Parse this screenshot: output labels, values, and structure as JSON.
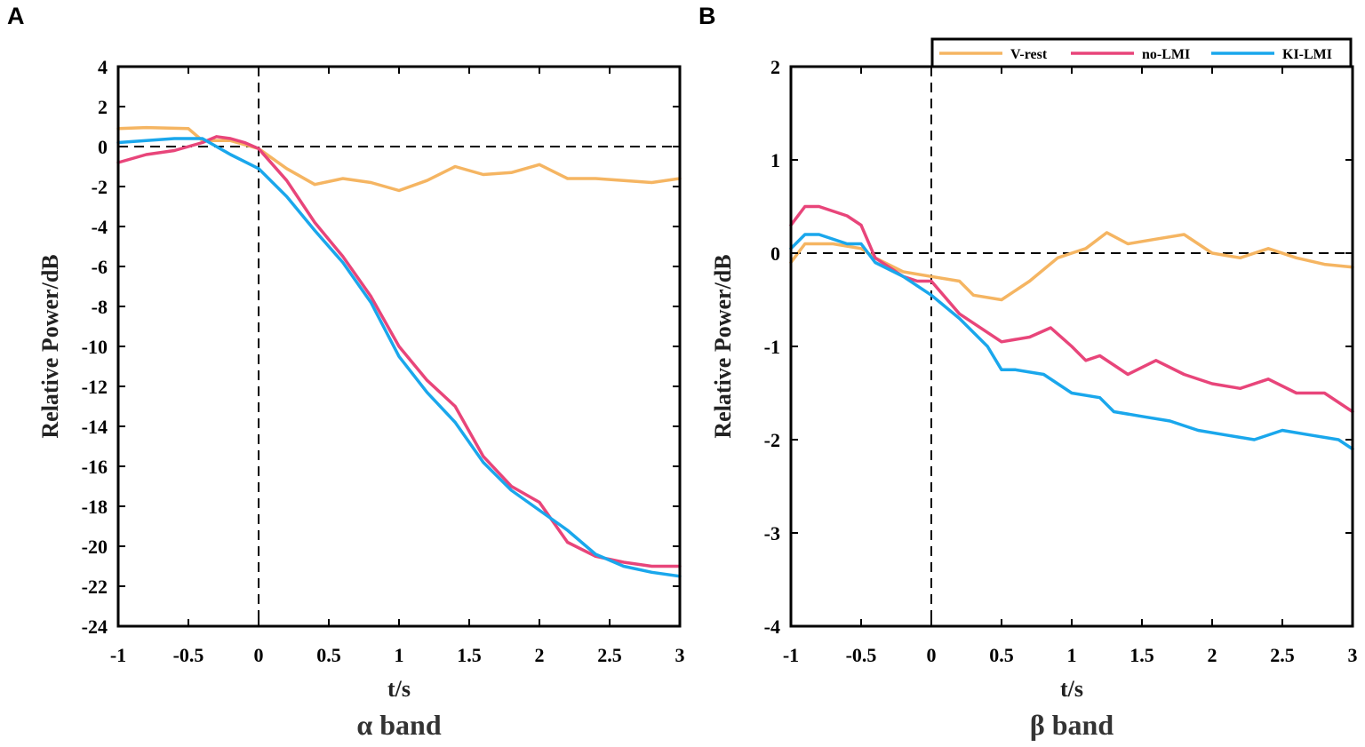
{
  "colors": {
    "V-rest": "#f5b562",
    "no-LMI": "#e8457a",
    "KI-LMI": "#1aa7ec"
  },
  "chart_data": [
    {
      "type": "line",
      "panel": "A",
      "subtitle": "α band",
      "xlabel": "t/s",
      "ylabel": "Relative Power/dB",
      "xlim": [
        -1,
        3
      ],
      "ylim": [
        -24,
        4
      ],
      "xticks": [
        -1,
        -0.5,
        0,
        0.5,
        1,
        1.5,
        2,
        2.5,
        3
      ],
      "xtick_labels": [
        "-1",
        "-0.5",
        "0",
        "0.5",
        "1",
        "1.5",
        "2",
        "2.5",
        "3"
      ],
      "yticks": [
        4,
        2,
        0,
        -2,
        -4,
        -6,
        -8,
        -10,
        -12,
        -14,
        -16,
        -18,
        -20,
        -22,
        -24
      ],
      "ytick_labels": [
        "4",
        "2",
        "0",
        "-2",
        "-4",
        "-6",
        "-8",
        "-10",
        "-12",
        "-14",
        "-16",
        "-18",
        "-20",
        "-22",
        "-24"
      ],
      "reference_lines": {
        "x": 0,
        "y": 0
      },
      "series": [
        {
          "name": "V-rest",
          "x": [
            -1,
            -0.8,
            -0.5,
            -0.4,
            -0.2,
            0,
            0.2,
            0.4,
            0.6,
            0.8,
            1,
            1.2,
            1.4,
            1.6,
            1.8,
            2,
            2.2,
            2.4,
            2.6,
            2.8,
            3
          ],
          "values": [
            0.9,
            0.95,
            0.9,
            0.3,
            0.3,
            -0.1,
            -1.1,
            -1.9,
            -1.6,
            -1.8,
            -2.2,
            -1.7,
            -1.0,
            -1.4,
            -1.3,
            -0.9,
            -1.6,
            -1.6,
            -1.7,
            -1.8,
            -1.6
          ]
        },
        {
          "name": "no-LMI",
          "x": [
            -1,
            -0.8,
            -0.6,
            -0.4,
            -0.3,
            -0.2,
            -0.1,
            0,
            0.2,
            0.4,
            0.6,
            0.8,
            1,
            1.2,
            1.4,
            1.6,
            1.8,
            2,
            2.2,
            2.4,
            2.6,
            2.8,
            3
          ],
          "values": [
            -0.8,
            -0.4,
            -0.2,
            0.2,
            0.5,
            0.4,
            0.2,
            -0.1,
            -1.7,
            -3.8,
            -5.5,
            -7.5,
            -10.0,
            -11.7,
            -13.0,
            -15.5,
            -17.0,
            -17.8,
            -19.8,
            -20.5,
            -20.8,
            -21.0,
            -21.0
          ]
        },
        {
          "name": "KI-LMI",
          "x": [
            -1,
            -0.8,
            -0.6,
            -0.4,
            -0.2,
            0,
            0.2,
            0.4,
            0.6,
            0.8,
            1,
            1.2,
            1.4,
            1.6,
            1.8,
            2,
            2.2,
            2.4,
            2.6,
            2.8,
            3
          ],
          "values": [
            0.2,
            0.3,
            0.4,
            0.4,
            -0.4,
            -1.1,
            -2.5,
            -4.2,
            -5.8,
            -7.8,
            -10.5,
            -12.3,
            -13.8,
            -15.8,
            -17.2,
            -18.2,
            -19.2,
            -20.4,
            -21.0,
            -21.3,
            -21.5
          ]
        }
      ]
    },
    {
      "type": "line",
      "panel": "B",
      "subtitle": "β band",
      "xlabel": "t/s",
      "ylabel": "Relative Power/dB",
      "xlim": [
        -1,
        3
      ],
      "ylim": [
        -4,
        2
      ],
      "xticks": [
        -1,
        -0.5,
        0,
        0.5,
        1,
        1.5,
        2,
        2.5,
        3
      ],
      "xtick_labels": [
        "-1",
        "-0.5",
        "0",
        "0.5",
        "1",
        "1.5",
        "2",
        "2.5",
        "3"
      ],
      "yticks": [
        2,
        1,
        0,
        -1,
        -2,
        -3,
        -4
      ],
      "ytick_labels": [
        "2",
        "1",
        "0",
        "-1",
        "-2",
        "-3",
        "-4"
      ],
      "reference_lines": {
        "x": 0,
        "y": 0
      },
      "legend": {
        "position": "top",
        "entries": [
          "V-rest",
          "no-LMI",
          "KI-LMI"
        ]
      },
      "series": [
        {
          "name": "V-rest",
          "x": [
            -1,
            -0.9,
            -0.7,
            -0.5,
            -0.4,
            -0.2,
            0,
            0.2,
            0.3,
            0.5,
            0.7,
            0.9,
            1,
            1.1,
            1.25,
            1.4,
            1.6,
            1.8,
            2,
            2.2,
            2.4,
            2.6,
            2.8,
            3
          ],
          "values": [
            -0.1,
            0.1,
            0.1,
            0.05,
            -0.05,
            -0.2,
            -0.25,
            -0.3,
            -0.45,
            -0.5,
            -0.3,
            -0.05,
            0.0,
            0.05,
            0.22,
            0.1,
            0.15,
            0.2,
            0.0,
            -0.05,
            0.05,
            -0.05,
            -0.12,
            -0.15
          ]
        },
        {
          "name": "no-LMI",
          "x": [
            -1,
            -0.9,
            -0.8,
            -0.6,
            -0.5,
            -0.4,
            -0.2,
            -0.1,
            0,
            0.2,
            0.4,
            0.5,
            0.7,
            0.85,
            1,
            1.1,
            1.2,
            1.4,
            1.6,
            1.8,
            2,
            2.2,
            2.4,
            2.6,
            2.8,
            3
          ],
          "values": [
            0.3,
            0.5,
            0.5,
            0.4,
            0.3,
            -0.05,
            -0.25,
            -0.3,
            -0.3,
            -0.65,
            -0.85,
            -0.95,
            -0.9,
            -0.8,
            -1.0,
            -1.15,
            -1.1,
            -1.3,
            -1.15,
            -1.3,
            -1.4,
            -1.45,
            -1.35,
            -1.5,
            -1.5,
            -1.7
          ]
        },
        {
          "name": "KI-LMI",
          "x": [
            -1,
            -0.9,
            -0.8,
            -0.6,
            -0.5,
            -0.4,
            -0.2,
            -0.1,
            0,
            0.2,
            0.4,
            0.5,
            0.6,
            0.8,
            1,
            1.2,
            1.3,
            1.5,
            1.7,
            1.9,
            2.1,
            2.3,
            2.5,
            2.7,
            2.9,
            3
          ],
          "values": [
            0.05,
            0.2,
            0.2,
            0.1,
            0.1,
            -0.1,
            -0.25,
            -0.35,
            -0.45,
            -0.7,
            -1.0,
            -1.25,
            -1.25,
            -1.3,
            -1.5,
            -1.55,
            -1.7,
            -1.75,
            -1.8,
            -1.9,
            -1.95,
            -2.0,
            -1.9,
            -1.95,
            -2.0,
            -2.1
          ]
        }
      ]
    }
  ]
}
